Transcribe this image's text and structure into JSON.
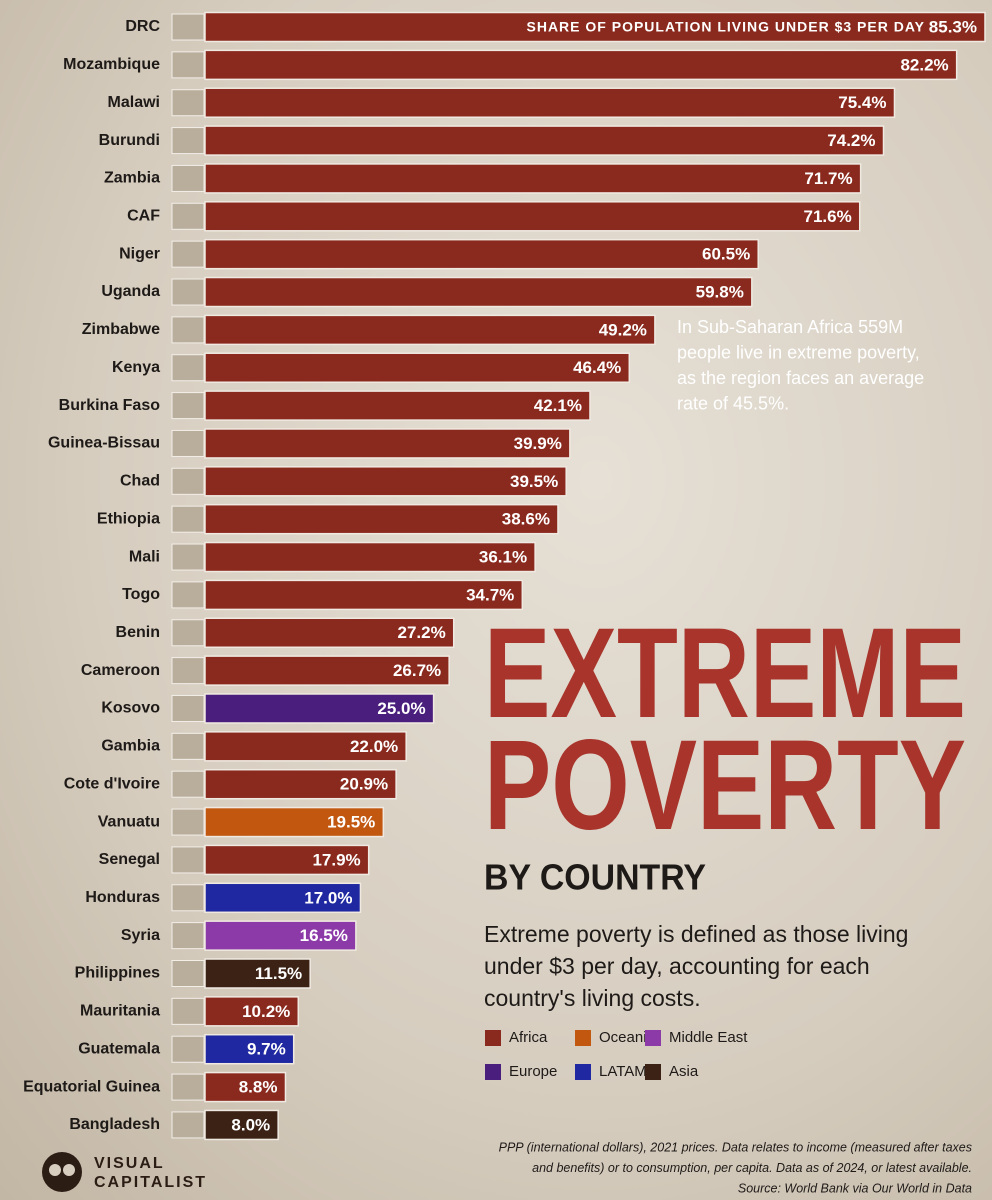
{
  "chart_data": {
    "type": "bar",
    "orientation": "horizontal",
    "axis_label": "SHARE OF POPULATION LIVING UNDER $3 PER DAY",
    "title_lines": [
      "EXTREME",
      "POVERTY"
    ],
    "subtitle": "BY COUNTRY",
    "description_lines": [
      "Extreme poverty is defined as those living",
      "under $3 per day, accounting for each",
      "country's living costs."
    ],
    "annotation_lines": [
      "In Sub-Saharan Africa 559M",
      "people live in extreme poverty,",
      "as the region faces an average",
      "rate of 45.5%."
    ],
    "categories": [
      "DRC",
      "Mozambique",
      "Malawi",
      "Burundi",
      "Zambia",
      "CAF",
      "Niger",
      "Uganda",
      "Zimbabwe",
      "Kenya",
      "Burkina Faso",
      "Guinea-Bissau",
      "Chad",
      "Ethiopia",
      "Mali",
      "Togo",
      "Benin",
      "Cameroon",
      "Kosovo",
      "Gambia",
      "Cote d'Ivoire",
      "Vanuatu",
      "Senegal",
      "Honduras",
      "Syria",
      "Philippines",
      "Mauritania",
      "Guatemala",
      "Equatorial Guinea",
      "Bangladesh"
    ],
    "values": [
      85.3,
      82.2,
      75.4,
      74.2,
      71.7,
      71.6,
      60.5,
      59.8,
      49.2,
      46.4,
      42.1,
      39.9,
      39.5,
      38.6,
      36.1,
      34.7,
      27.2,
      26.7,
      25.0,
      22.0,
      20.9,
      19.5,
      17.9,
      17.0,
      16.5,
      11.5,
      10.2,
      9.7,
      8.8,
      8.0
    ],
    "value_labels": [
      "85.3%",
      "82.2%",
      "75.4%",
      "74.2%",
      "71.7%",
      "71.6%",
      "60.5%",
      "59.8%",
      "49.2%",
      "46.4%",
      "42.1%",
      "39.9%",
      "39.5%",
      "38.6%",
      "36.1%",
      "34.7%",
      "27.2%",
      "26.7%",
      "25.0%",
      "22.0%",
      "20.9%",
      "19.5%",
      "17.9%",
      "17.0%",
      "16.5%",
      "11.5%",
      "10.2%",
      "9.7%",
      "8.8%",
      "8.0%"
    ],
    "bar_colors": [
      "#8a2a1e",
      "#8a2a1e",
      "#8a2a1e",
      "#8a2a1e",
      "#8a2a1e",
      "#8a2a1e",
      "#8a2a1e",
      "#8a2a1e",
      "#8a2a1e",
      "#8a2a1e",
      "#8a2a1e",
      "#8a2a1e",
      "#8a2a1e",
      "#8a2a1e",
      "#8a2a1e",
      "#8a2a1e",
      "#8a2a1e",
      "#8a2a1e",
      "#4a1e7c",
      "#8a2a1e",
      "#8a2a1e",
      "#c2570f",
      "#8a2a1e",
      "#1f28a0",
      "#8c3aa8",
      "#3b2214",
      "#8a2a1e",
      "#1f28a0",
      "#8a2a1e",
      "#3b2214"
    ],
    "legend": [
      {
        "name": "Africa",
        "color": "#8a2a1e"
      },
      {
        "name": "Oceania",
        "color": "#c2570f"
      },
      {
        "name": "Middle East",
        "color": "#8c3aa8"
      },
      {
        "name": "Europe",
        "color": "#4a1e7c"
      },
      {
        "name": "LATAM",
        "color": "#1f28a0"
      },
      {
        "name": "Asia",
        "color": "#3b2214"
      }
    ],
    "xlim": [
      0,
      86
    ],
    "source_lines": [
      "PPP (international dollars), 2021 prices. Data relates to income (measured after taxes",
      "and benefits) or to consumption, per capita. Data as of 2024, or latest available.",
      "Source: World Bank via Our World in Data"
    ],
    "logo_lines": [
      "VISUAL",
      "CAPITALIST"
    ]
  }
}
